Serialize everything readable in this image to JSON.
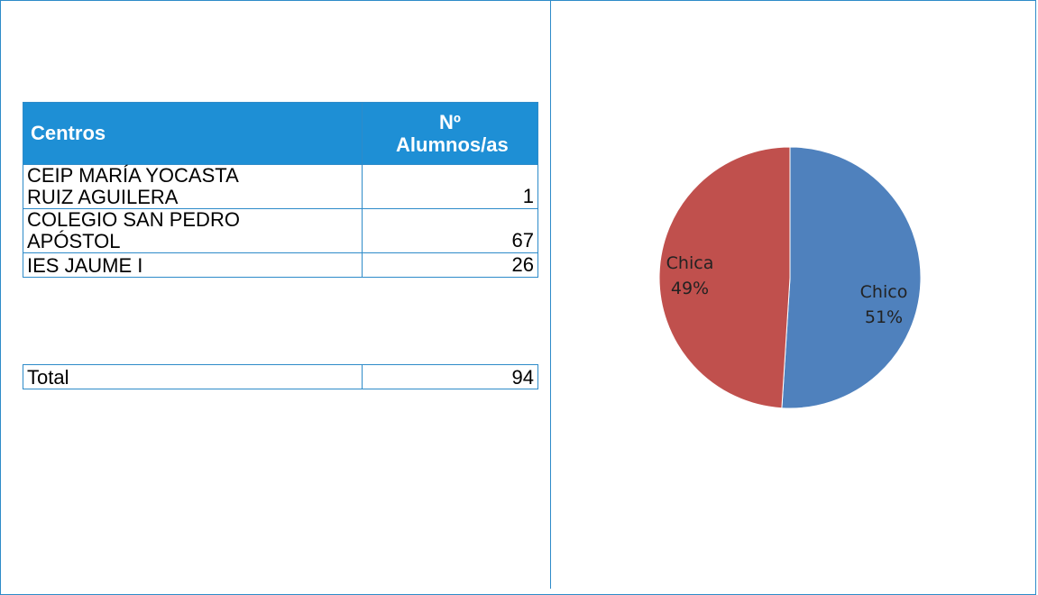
{
  "table": {
    "headers": [
      "Centros",
      "Nº Alumnos/as"
    ],
    "rows": [
      [
        "CEIP MARÍA YOCASTA RUIZ AGUILERA",
        1
      ],
      [
        "COLEGIO SAN PEDRO APÓSTOL",
        67
      ],
      [
        "IES JAUME I",
        26
      ]
    ]
  },
  "total": {
    "label": "Total",
    "value": 94
  },
  "chart_data": {
    "type": "pie",
    "categories": [
      "Chico",
      "Chica"
    ],
    "values": [
      51,
      49
    ],
    "value_labels": [
      "51%",
      "49%"
    ],
    "colors": [
      "#4f81bd",
      "#c0504d"
    ]
  }
}
